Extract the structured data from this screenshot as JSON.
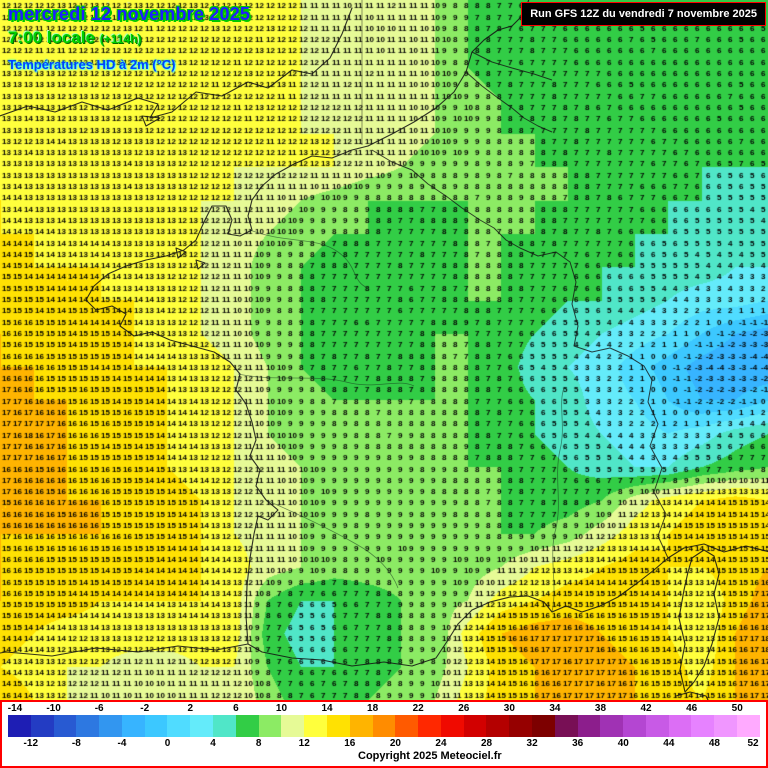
{
  "header": {
    "date": "mercredi 12 novembre 2025",
    "time": "7:00 locale",
    "offset": "(+114h)",
    "subtitle": "Températures HD à 2m (°C)"
  },
  "run_info": "Run GFS 12Z du vendredi 7 novembre 2025",
  "copyright": "Copyright 2025 Meteociel.fr",
  "colors": {
    "date_text": "#1e1eff",
    "date_glow": "#00c800",
    "time_text": "#00d200",
    "time_shadow": "#006e00",
    "subtitle_text": "#0041ff",
    "subtitle_glow": "#00ffff",
    "run_box_bg": "#000000",
    "run_box_text": "#ffffff",
    "run_box_border": "#ff0000",
    "legend_border": "#ff0000",
    "number_text": "#000000"
  },
  "legend": {
    "min": -14,
    "max": 52,
    "step": 2,
    "top_labels": [
      -14,
      -10,
      -6,
      -2,
      2,
      6,
      10,
      14,
      18,
      22,
      26,
      30,
      34,
      38,
      42,
      46,
      50
    ],
    "bottom_labels": [
      -12,
      -8,
      -4,
      0,
      4,
      8,
      12,
      16,
      20,
      24,
      28,
      32,
      36,
      40,
      44,
      48,
      52
    ],
    "colors": [
      "#1e1eb4",
      "#233cc3",
      "#285ad2",
      "#2d78e1",
      "#3296f0",
      "#37b4ff",
      "#3cc8ff",
      "#50dcff",
      "#64ebfa",
      "#50e6c8",
      "#32cd46",
      "#8ceb64",
      "#e6fa96",
      "#ffff3c",
      "#ffe102",
      "#ffb400",
      "#ff8c00",
      "#ff5a00",
      "#ff2800",
      "#f00a00",
      "#d20000",
      "#b40000",
      "#960000",
      "#7d0000",
      "#780f55",
      "#8c1e8c",
      "#a032b4",
      "#b446d2",
      "#c85ae6",
      "#dc6ef5",
      "#e682ff",
      "#f096ff",
      "#ffaaff"
    ]
  },
  "map": {
    "units": "°C",
    "grid": {
      "cols": 24,
      "rows": 22,
      "values": [
        [
          12,
          12,
          12,
          12,
          12,
          12,
          12,
          12,
          12,
          12,
          11,
          11,
          12,
          10,
          8,
          7,
          6,
          6,
          6,
          6,
          6,
          6,
          6,
          6
        ],
        [
          12,
          12,
          12,
          12,
          12,
          12,
          12,
          12,
          12,
          12,
          11,
          10,
          11,
          10,
          8,
          7,
          7,
          6,
          6,
          6,
          6,
          6,
          6,
          6
        ],
        [
          13,
          12,
          12,
          12,
          12,
          12,
          12,
          12,
          12,
          12,
          11,
          11,
          11,
          10,
          8,
          7,
          7,
          7,
          6,
          6,
          6,
          6,
          6,
          6
        ],
        [
          13,
          13,
          13,
          13,
          12,
          12,
          12,
          12,
          12,
          12,
          11,
          11,
          11,
          10,
          9,
          8,
          7,
          7,
          7,
          6,
          6,
          6,
          6,
          6
        ],
        [
          13,
          13,
          13,
          13,
          13,
          12,
          12,
          12,
          12,
          12,
          12,
          11,
          11,
          10,
          9,
          8,
          8,
          7,
          7,
          7,
          6,
          6,
          6,
          6
        ],
        [
          13,
          13,
          13,
          13,
          13,
          13,
          12,
          12,
          12,
          12,
          12,
          11,
          10,
          9,
          9,
          8,
          8,
          8,
          7,
          7,
          7,
          6,
          6,
          6
        ],
        [
          14,
          13,
          13,
          13,
          13,
          13,
          12,
          12,
          11,
          10,
          9,
          8,
          8,
          8,
          8,
          8,
          8,
          8,
          7,
          7,
          6,
          6,
          5,
          5
        ],
        [
          14,
          14,
          13,
          13,
          13,
          13,
          12,
          11,
          10,
          9,
          8,
          8,
          7,
          7,
          8,
          8,
          8,
          7,
          7,
          6,
          6,
          5,
          5,
          5
        ],
        [
          15,
          14,
          14,
          14,
          13,
          13,
          12,
          11,
          9,
          8,
          7,
          7,
          7,
          7,
          8,
          8,
          7,
          7,
          6,
          6,
          5,
          5,
          4,
          4
        ],
        [
          15,
          15,
          14,
          14,
          14,
          13,
          12,
          11,
          9,
          8,
          7,
          7,
          7,
          7,
          8,
          8,
          7,
          6,
          6,
          5,
          4,
          3,
          3,
          2
        ],
        [
          16,
          15,
          15,
          15,
          14,
          13,
          12,
          11,
          9,
          8,
          7,
          7,
          7,
          8,
          8,
          7,
          6,
          5,
          4,
          3,
          2,
          0,
          -2,
          -3
        ],
        [
          16,
          16,
          15,
          15,
          14,
          14,
          13,
          12,
          10,
          8,
          7,
          7,
          7,
          8,
          8,
          7,
          5,
          4,
          3,
          1,
          -1,
          -3,
          -4,
          -4
        ],
        [
          17,
          16,
          16,
          15,
          15,
          14,
          13,
          12,
          10,
          9,
          8,
          8,
          8,
          8,
          8,
          7,
          6,
          5,
          3,
          2,
          0,
          -2,
          -2,
          0
        ],
        [
          17,
          17,
          16,
          15,
          15,
          14,
          13,
          12,
          10,
          9,
          9,
          8,
          8,
          8,
          8,
          7,
          6,
          5,
          4,
          3,
          2,
          3,
          5,
          6
        ],
        [
          17,
          16,
          16,
          15,
          15,
          14,
          13,
          12,
          11,
          10,
          9,
          9,
          9,
          8,
          8,
          8,
          7,
          6,
          5,
          4,
          4,
          6,
          7,
          8
        ],
        [
          16,
          16,
          16,
          16,
          15,
          15,
          14,
          12,
          11,
          10,
          9,
          9,
          9,
          9,
          8,
          8,
          7,
          7,
          8,
          11,
          13,
          14,
          15,
          14
        ],
        [
          16,
          16,
          16,
          16,
          15,
          15,
          14,
          12,
          11,
          10,
          9,
          9,
          9,
          9,
          9,
          8,
          8,
          9,
          11,
          13,
          14,
          15,
          15,
          15
        ],
        [
          16,
          15,
          15,
          15,
          15,
          14,
          14,
          13,
          11,
          10,
          9,
          9,
          9,
          9,
          9,
          10,
          12,
          13,
          14,
          15,
          14,
          14,
          15,
          16
        ],
        [
          16,
          15,
          15,
          14,
          14,
          14,
          14,
          13,
          8,
          6,
          6,
          7,
          8,
          9,
          10,
          13,
          14,
          15,
          15,
          15,
          14,
          12,
          15,
          17
        ],
        [
          15,
          14,
          13,
          13,
          13,
          13,
          13,
          13,
          7,
          5,
          6,
          7,
          8,
          8,
          13,
          16,
          17,
          17,
          16,
          15,
          14,
          12,
          16,
          18
        ],
        [
          14,
          13,
          12,
          12,
          11,
          11,
          12,
          12,
          8,
          6,
          6,
          7,
          8,
          9,
          12,
          15,
          16,
          17,
          17,
          16,
          15,
          13,
          16,
          17
        ],
        [
          16,
          14,
          12,
          11,
          10,
          10,
          11,
          12,
          9,
          7,
          7,
          8,
          9,
          10,
          13,
          15,
          16,
          17,
          17,
          16,
          15,
          14,
          16,
          17
        ]
      ]
    }
  }
}
